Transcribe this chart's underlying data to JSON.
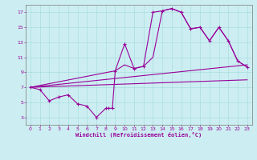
{
  "xlabel": "Windchill (Refroidissement éolien,°C)",
  "bg_color": "#cceef2",
  "grid_color": "#aadddd",
  "line_color": "#990099",
  "xlim": [
    -0.5,
    23.5
  ],
  "ylim": [
    2.0,
    18.0
  ],
  "xticks": [
    0,
    1,
    2,
    3,
    4,
    5,
    6,
    7,
    8,
    9,
    10,
    11,
    12,
    13,
    14,
    15,
    16,
    17,
    18,
    19,
    20,
    21,
    22,
    23
  ],
  "yticks": [
    3,
    5,
    7,
    9,
    11,
    13,
    15,
    17
  ],
  "main_x": [
    0,
    1,
    2,
    3,
    4,
    5,
    6,
    7,
    8,
    8.3,
    8.7,
    9,
    10,
    11,
    12,
    13,
    14,
    15,
    16,
    17,
    18,
    19,
    20,
    21,
    22,
    23
  ],
  "main_y": [
    7.0,
    6.7,
    5.2,
    5.7,
    6.0,
    4.8,
    4.5,
    3.0,
    4.2,
    4.2,
    4.2,
    9.2,
    12.8,
    9.5,
    9.8,
    17.0,
    17.2,
    17.5,
    17.0,
    14.8,
    15.0,
    13.2,
    15.0,
    13.2,
    10.5,
    9.7
  ],
  "upper_x": [
    0,
    9,
    10,
    11,
    12,
    13,
    14,
    15,
    16,
    17,
    18,
    19,
    20,
    21,
    22,
    23
  ],
  "upper_y": [
    7.0,
    9.2,
    10.0,
    9.5,
    9.8,
    11.0,
    17.2,
    17.5,
    17.0,
    14.8,
    15.0,
    13.2,
    15.0,
    13.2,
    10.5,
    9.7
  ],
  "line1_x": [
    0,
    23
  ],
  "line1_y": [
    7.0,
    10.0
  ],
  "line2_x": [
    0,
    23
  ],
  "line2_y": [
    7.0,
    8.0
  ]
}
